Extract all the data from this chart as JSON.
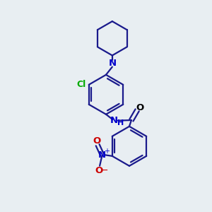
{
  "background_color": "#e8eef2",
  "bond_color": "#1a1a8c",
  "cl_color": "#00aa00",
  "n_color": "#0000cc",
  "o_color": "#cc0000",
  "carbonyl_o_color": "#000000",
  "line_width": 1.6,
  "figsize": [
    3.0,
    3.0
  ],
  "dpi": 100,
  "xlim": [
    0,
    10
  ],
  "ylim": [
    0,
    10
  ]
}
